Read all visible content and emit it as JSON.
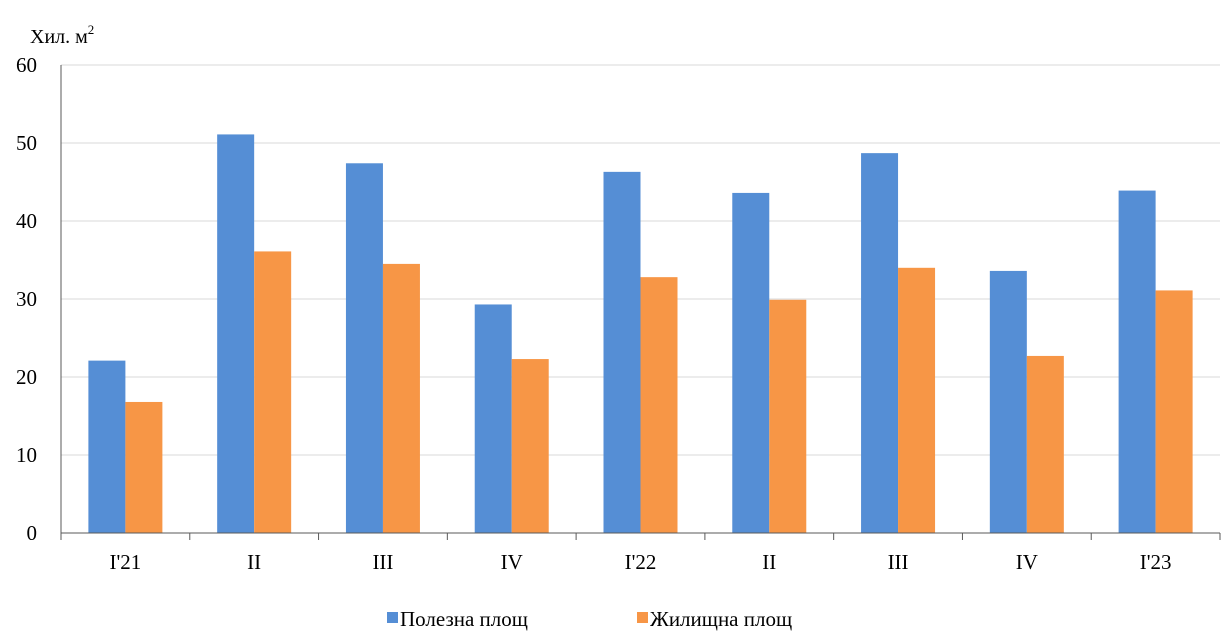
{
  "chart_data": {
    "type": "bar",
    "title": "",
    "unit_label": "Хил. м",
    "unit_superscript": "2",
    "categories": [
      "I'21",
      "II",
      "III",
      "IV",
      "I'22",
      "II",
      "III",
      "IV",
      "I'23"
    ],
    "series": [
      {
        "name": "Полезна площ",
        "color": "#558ed5",
        "values": [
          22.1,
          51.1,
          47.4,
          29.3,
          46.3,
          43.6,
          48.7,
          33.6,
          43.9
        ]
      },
      {
        "name": "Жилищна площ",
        "color": "#f79646",
        "values": [
          16.8,
          36.1,
          34.5,
          22.3,
          32.8,
          29.9,
          34.0,
          22.7,
          31.1
        ]
      }
    ],
    "ylim": [
      0,
      60
    ],
    "yticks": [
      0,
      10,
      20,
      30,
      40,
      50,
      60
    ],
    "grid": true,
    "legend_position": "bottom"
  }
}
